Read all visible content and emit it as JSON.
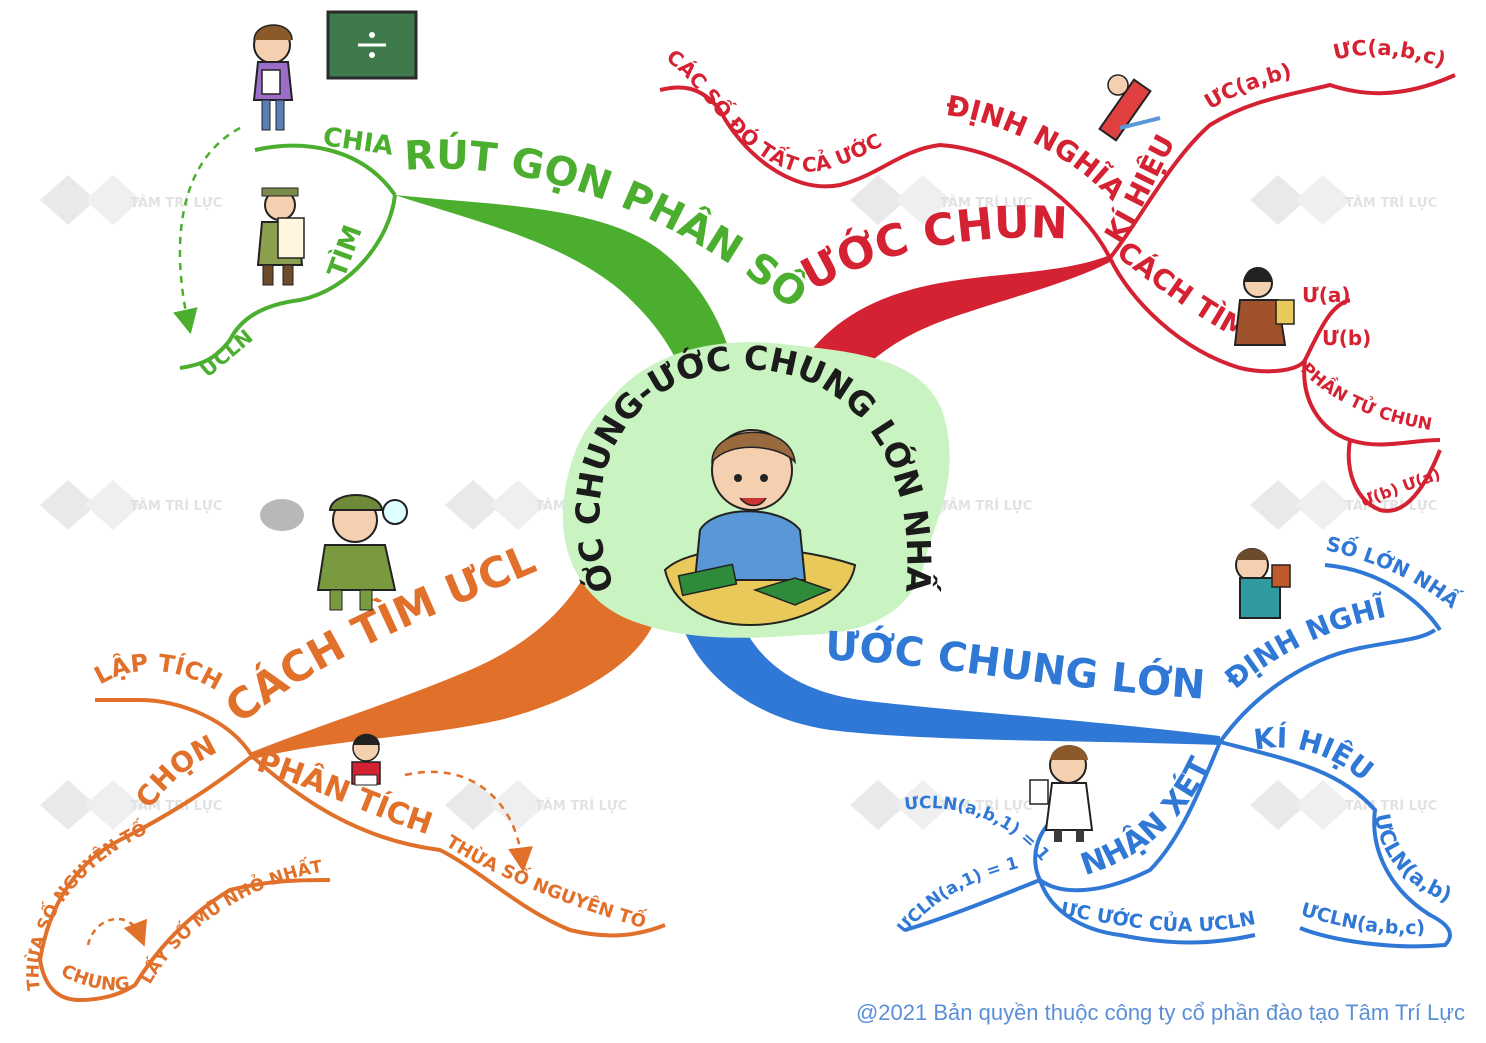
{
  "center": {
    "title": "ƯỚC CHUNG-ƯỚC CHUNG LỚN NHẤT",
    "bg_color": "#c9f3c0"
  },
  "colors": {
    "green": "#4cae2e",
    "red": "#d42233",
    "orange": "#e0702a",
    "blue": "#2f78d6",
    "copyright": "#5b8fd6",
    "watermark": "#e8e8e8"
  },
  "branches": {
    "rut_gon": {
      "title": "RÚT GỌN PHÂN SỐ",
      "chia": "CHIA",
      "tim": "TÌM",
      "uocln": "ƯCLN"
    },
    "uoc_chung": {
      "title": "ƯỚC CHUNG",
      "dinh_nghia": "ĐỊNH NGHĨA",
      "dn_text": "CÁC SỐ ĐÓ TẤT CẢ ƯỚC",
      "ki_hieu": "KÍ HIỆU",
      "kh_ab": "ƯC(a,b)",
      "kh_abc": "ƯC(a,b,c)",
      "cach_tim": "CÁCH TÌM",
      "ua": "Ư(a)",
      "ub": "Ư(b)",
      "ptc": "PHẦN TỬ CHUNG",
      "uba": "Ư(b) Ư(a)"
    },
    "ucln": {
      "title": "ƯỚC CHUNG LỚN NHẤT",
      "dinh_nghia": "ĐỊNH NGHĨA",
      "so_lon_nhat": "SỐ LỚN NHẤT",
      "ki_hieu": "KÍ HIỆU",
      "kh_ab": "ƯCLN(a,b)",
      "kh_abc": "ƯCLN(a,b,c)",
      "nhan_xet": "NHẬN XÉT",
      "nx1": "ƯCLN(a,b,1) = 1",
      "nx2": "ƯCLN(a,1) = 1",
      "nx3": "ƯC ƯỚC CỦA ƯCLN"
    },
    "cach_tim": {
      "title": "CÁCH TÌM ƯCLN",
      "lap_tich": "LẬP TÍCH",
      "chon": "CHỌN",
      "tsnt1": "THỪA SỐ NGUYÊN TỐ",
      "chung": "CHUNG",
      "lay": "LẤY SỐ MŨ NHỎ NHẤT",
      "phan_tich": "PHÂN TÍCH",
      "tsnt2": "THỪA SỐ NGUYÊN TỐ"
    }
  },
  "watermark": {
    "name": "TÂM TRÍ LỰC"
  },
  "copyright": "@2021 Bản quyền thuộc công ty cổ phần đào tạo Tâm Trí Lực"
}
